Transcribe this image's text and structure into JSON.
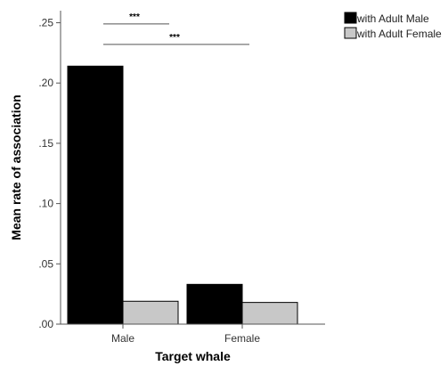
{
  "chart_data": {
    "type": "bar",
    "categories": [
      "Male",
      "Female"
    ],
    "series": [
      {
        "name": "with Adult Male",
        "values": [
          0.214,
          0.033
        ],
        "color": "#000000"
      },
      {
        "name": "with Adult Female",
        "values": [
          0.019,
          0.018
        ],
        "color": "#c8c8c8"
      }
    ],
    "xlabel": "Target whale",
    "ylabel": "Mean rate of association",
    "ylim": [
      0,
      0.26
    ],
    "yticks": [
      ".00",
      ".05",
      ".10",
      ".15",
      ".20",
      ".25"
    ],
    "ytick_values": [
      0,
      0.05,
      0.1,
      0.15,
      0.2,
      0.25
    ],
    "grid": false,
    "legend_position": "top-right",
    "annotations": [
      {
        "text": "***",
        "from": "Male / with Adult Male",
        "to": "Male / with Adult Female",
        "level": 0.249
      },
      {
        "text": "***",
        "from": "Male / with Adult Male",
        "to": "Female / with Adult Male",
        "level": 0.232
      }
    ]
  }
}
